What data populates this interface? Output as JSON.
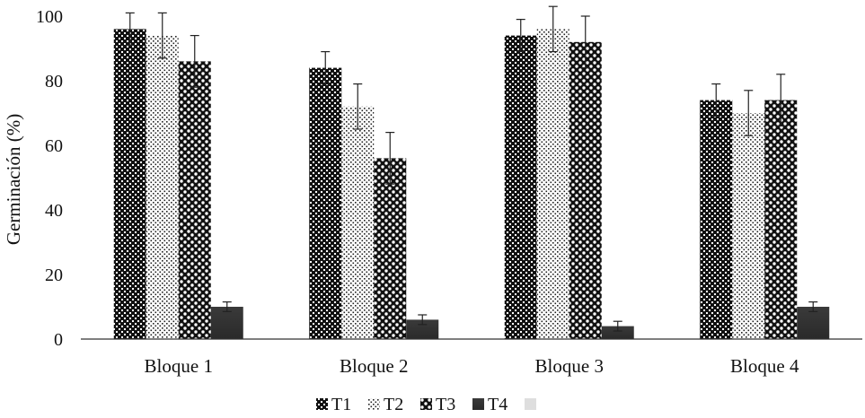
{
  "chart_data": {
    "type": "bar",
    "ylabel": "Germinación (%)",
    "xlabel": "",
    "ylim": [
      0,
      100
    ],
    "yticks": [
      0,
      20,
      40,
      60,
      80,
      100
    ],
    "grid": false,
    "legend_position": "bottom",
    "categories": [
      "Bloque 1",
      "Bloque 2",
      "Bloque 3",
      "Bloque 4"
    ],
    "series": [
      {
        "name": "T1",
        "pattern": "dark-checker",
        "values": [
          96,
          84,
          94,
          74
        ],
        "errors": [
          5,
          5,
          5,
          5
        ]
      },
      {
        "name": "T2",
        "pattern": "light-dots",
        "values": [
          94,
          72,
          96,
          70
        ],
        "errors": [
          7,
          7,
          7,
          7
        ]
      },
      {
        "name": "T3",
        "pattern": "circles",
        "values": [
          86,
          56,
          92,
          74
        ],
        "errors": [
          8,
          8,
          8,
          8
        ]
      },
      {
        "name": "T4",
        "pattern": "solid-dark",
        "values": [
          10,
          6,
          4,
          10
        ],
        "errors": [
          1.5,
          1.5,
          1.5,
          1.5
        ]
      }
    ],
    "extra_legend_swatch": "light-gray"
  }
}
